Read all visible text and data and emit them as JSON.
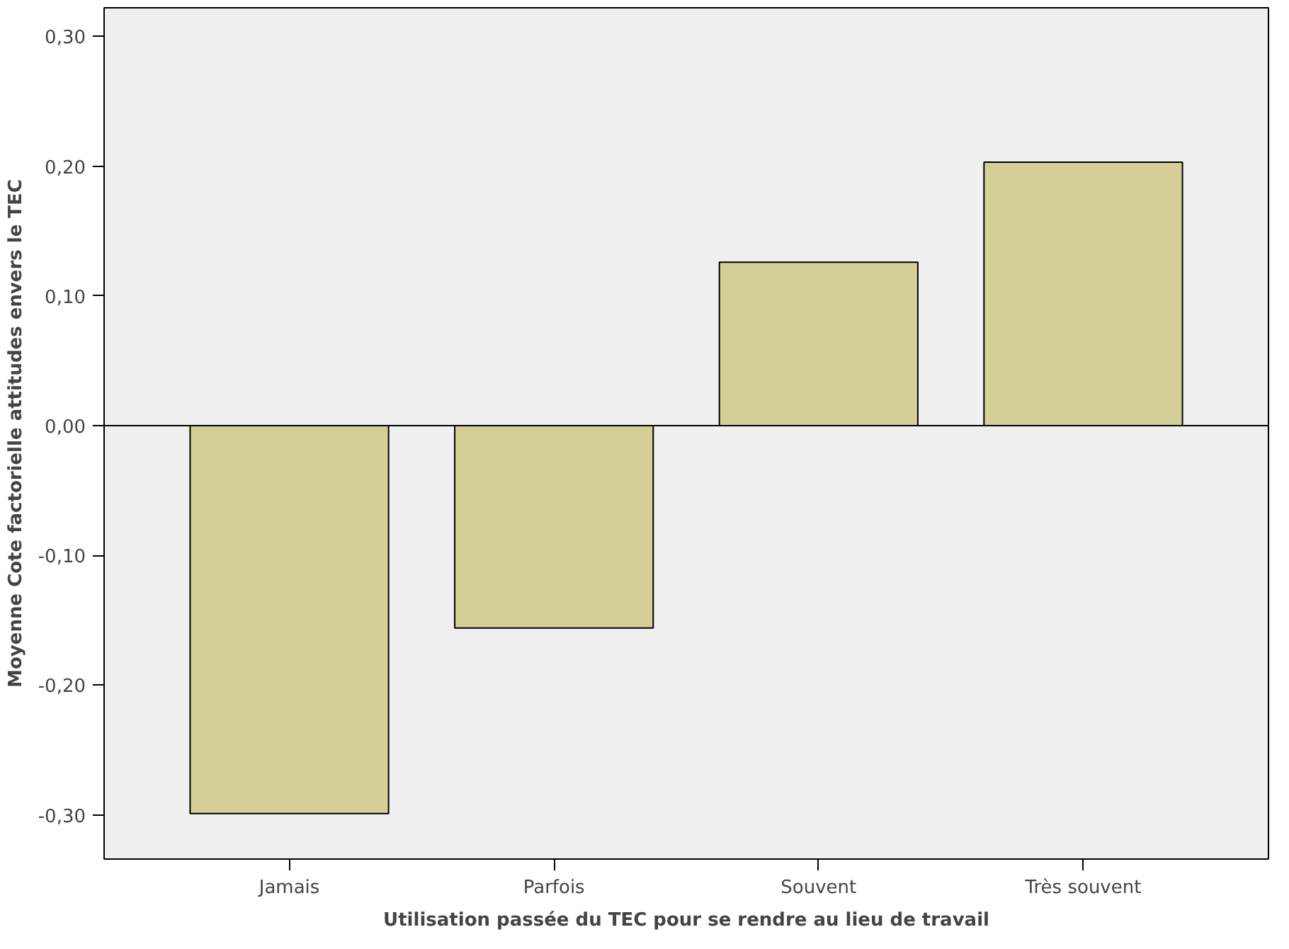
{
  "chart_data": {
    "type": "bar",
    "xlabel": "Utilisation passée du TEC pour se rendre au lieu de travail",
    "ylabel": "Moyenne Cote factorielle attitudes envers le TEC",
    "categories": [
      "Jamais",
      "Parfois",
      "Souvent",
      "Très souvent"
    ],
    "values": [
      -0.299,
      -0.156,
      0.126,
      0.203
    ],
    "color": "#d4cf96",
    "ylim": [
      -0.334,
      0.322
    ],
    "yticks": [
      {
        "value": -0.3,
        "label": "-0,30"
      },
      {
        "value": -0.2,
        "label": "-0,20"
      },
      {
        "value": -0.1,
        "label": "-0,10"
      },
      {
        "value": 0,
        "label": "0,00"
      },
      {
        "value": 0.1,
        "label": "0,10"
      },
      {
        "value": 0.2,
        "label": "0,20"
      },
      {
        "value": 0.3,
        "label": "0,30"
      }
    ],
    "ref_lines": [
      {
        "axis": "y",
        "value": 0,
        "label": null,
        "color": "#000000"
      }
    ],
    "grid": false
  }
}
